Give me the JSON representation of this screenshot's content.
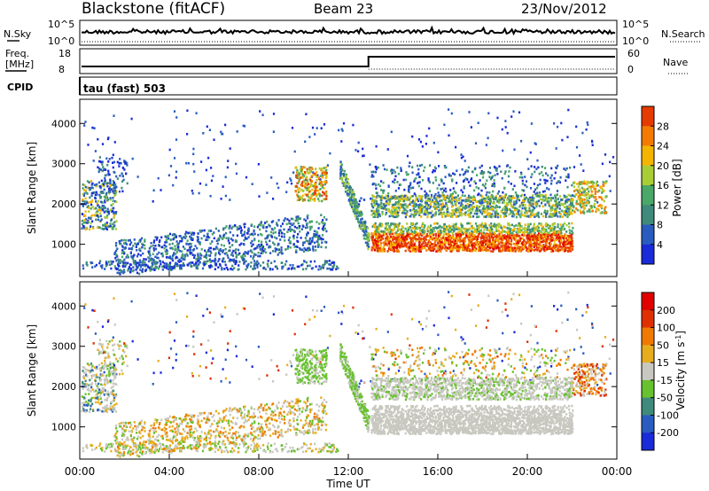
{
  "header": {
    "station": "Blackstone (fitACF)",
    "beam": "Beam 23",
    "date": "23/Nov/2012"
  },
  "noise_panel": {
    "left_label": "N.Sky",
    "right_label": "N.Search",
    "left_ticks": [
      "10^5",
      "10^0"
    ],
    "right_ticks": [
      "10^5",
      "10^0"
    ]
  },
  "freq_panel": {
    "left_label_1": "Freq.",
    "left_label_2": "[MHz]",
    "right_label": "Nave",
    "left_ticks": [
      "18",
      "8"
    ],
    "right_ticks": [
      "60",
      "0"
    ]
  },
  "cpid": {
    "label": "CPID",
    "text": "tau (fast) 503"
  },
  "colors": {
    "power_scale": [
      "#1a2bd9",
      "#2a5cc0",
      "#3f8a7a",
      "#4aa868",
      "#a9cd35",
      "#f5b400",
      "#f47b00",
      "#e53b00",
      "#e00000"
    ],
    "velocity_scale": [
      "#1a2bd9",
      "#2a5cc0",
      "#3f8a7a",
      "#68c12f",
      "#c8c8c0",
      "#e7ad1f",
      "#f07a00",
      "#e03000",
      "#e00000"
    ]
  },
  "chart_data": [
    {
      "type": "heatmap",
      "name": "power",
      "ylabel": "Slant Range [km]",
      "y_ticks": [
        1000,
        2000,
        3000,
        4000
      ],
      "ylim": [
        200,
        4600
      ],
      "colorbar_label": "Power [dB]",
      "colorbar_ticks": [
        "28",
        "24",
        "20",
        "16",
        "12",
        "8",
        "4"
      ],
      "clim": [
        0,
        32
      ]
    },
    {
      "type": "heatmap",
      "name": "velocity",
      "ylabel": "Slant Range [km]",
      "y_ticks": [
        1000,
        2000,
        3000,
        4000
      ],
      "ylim": [
        200,
        4600
      ],
      "colorbar_label": "Velocity [m s^-1]",
      "colorbar_ticks": [
        "200",
        "100",
        "50",
        "15",
        "-15",
        "-50",
        "-100",
        "-200"
      ]
    }
  ],
  "x_axis": {
    "label": "Time UT",
    "tick_labels": [
      "00:00",
      "04:00",
      "08:00",
      "12:00",
      "16:00",
      "20:00",
      "00:00"
    ],
    "range_hours": [
      0,
      24
    ]
  }
}
